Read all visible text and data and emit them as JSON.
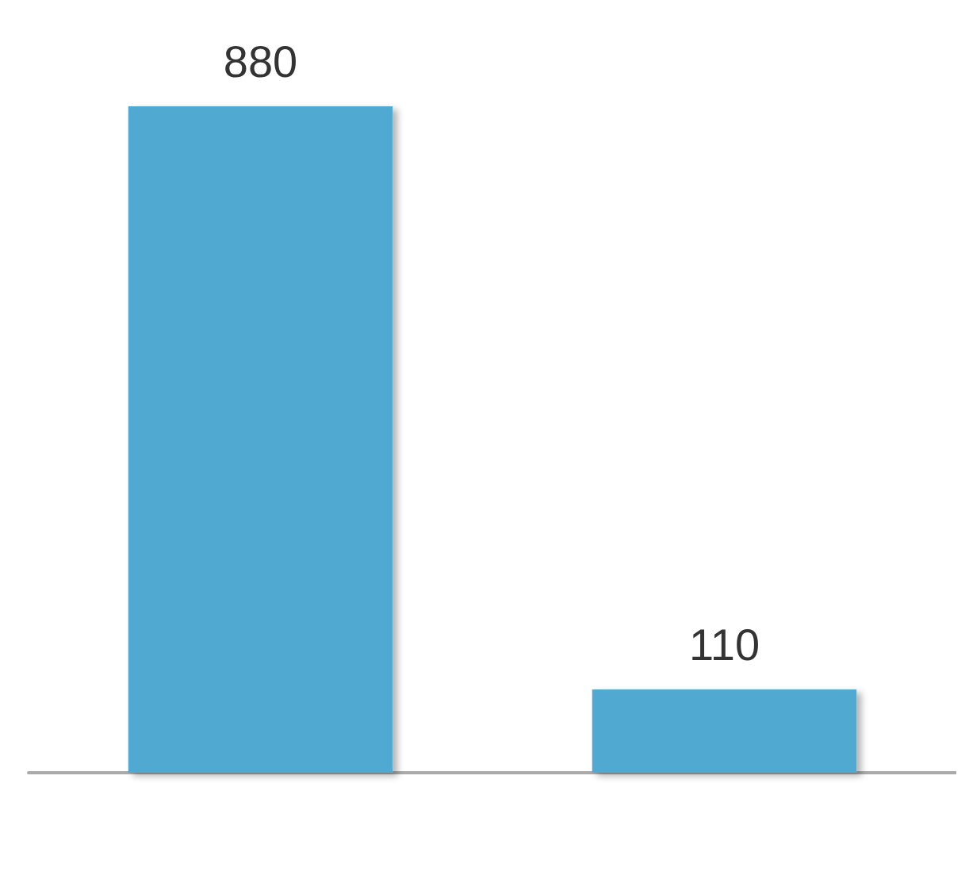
{
  "chart_data": {
    "type": "bar",
    "categories": [
      null,
      null
    ],
    "values": [
      880,
      110
    ],
    "color": "#50a9d0",
    "data_labels": true
  }
}
